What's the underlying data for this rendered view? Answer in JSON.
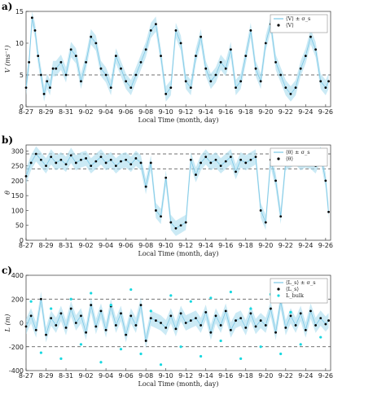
{
  "chart_data": [
    {
      "type": "line",
      "panel_label": "a)",
      "title": "",
      "xlabel": "Local Time (month, day)",
      "ylabel": "V (ms⁻¹)",
      "x_tick_labels": [
        "8-27",
        "8-29",
        "8-31",
        "9-02",
        "9-04",
        "9-06",
        "9-08",
        "9-10",
        "9-12",
        "9-14",
        "9-16",
        "9-18",
        "9-20",
        "9-22",
        "9-24",
        "9-26"
      ],
      "xlim": [
        0,
        30.5
      ],
      "ylim": [
        0,
        15
      ],
      "y_ticks": [
        0,
        5,
        10,
        15
      ],
      "reference_lines": [
        5
      ],
      "legend": [
        "⟨V⟩ ± σ_s",
        "⟨V⟩"
      ],
      "legend_position": "top-right",
      "band_color": "#a9dcef",
      "point_color": "#000000",
      "series": [
        {
          "name": "⟨V⟩",
          "x": [
            0,
            0.3,
            0.6,
            0.9,
            1.2,
            1.5,
            1.8,
            2.1,
            2.4,
            2.7,
            3.0,
            3.5,
            4.0,
            4.5,
            5.0,
            5.5,
            6.0,
            6.5,
            7.0,
            7.5,
            8.0,
            8.5,
            9.0,
            9.5,
            10.0,
            10.5,
            11.0,
            11.5,
            12.0,
            12.5,
            13.0,
            13.5,
            14.0,
            14.5,
            15.0,
            15.5,
            16.0,
            16.5,
            17.0,
            17.5,
            18.0,
            18.5,
            19.0,
            19.5,
            20.0,
            20.5,
            21.0,
            21.5,
            22.0,
            22.5,
            23.0,
            23.5,
            24.0,
            24.5,
            25.0,
            25.5,
            26.0,
            26.5,
            27.0,
            27.5,
            28.0,
            28.5,
            29.0,
            29.5,
            30.0,
            30.3
          ],
          "y": [
            3,
            7,
            14,
            12,
            8,
            5,
            2,
            4,
            3,
            6,
            6,
            7,
            5,
            9,
            8,
            4,
            7,
            11,
            10,
            6,
            5,
            3,
            8,
            6,
            4,
            3,
            5,
            7,
            9,
            12,
            13,
            8,
            2,
            3,
            12,
            10,
            4,
            3,
            8,
            11,
            6,
            4,
            5,
            7,
            6,
            9,
            3,
            4,
            8,
            12,
            6,
            4,
            10,
            13,
            7,
            5,
            3,
            2,
            3,
            6,
            8,
            11,
            9,
            4,
            3,
            4
          ]
        }
      ]
    },
    {
      "type": "line",
      "panel_label": "b)",
      "title": "",
      "xlabel": "Local Time (month, day)",
      "ylabel": "θ",
      "x_tick_labels": [
        "8-27",
        "8-29",
        "8-31",
        "9-02",
        "9-04",
        "9-06",
        "9-08",
        "9-10",
        "9-12",
        "9-14",
        "9-16",
        "9-18",
        "9-20",
        "9-22",
        "9-24",
        "9-26"
      ],
      "xlim": [
        0,
        30.5
      ],
      "ylim": [
        0,
        320
      ],
      "y_ticks": [
        0,
        50,
        100,
        150,
        200,
        250,
        300
      ],
      "reference_lines": [
        240,
        290
      ],
      "legend": [
        "⟨θ⟩ ± σ_s",
        "⟨θ⟩"
      ],
      "legend_position": "top-right",
      "band_color": "#a9dcef",
      "point_color": "#000000",
      "series": [
        {
          "name": "⟨θ⟩",
          "x": [
            0,
            0.5,
            1.0,
            1.5,
            2.0,
            2.5,
            3.0,
            3.5,
            4.0,
            4.5,
            5.0,
            5.5,
            6.0,
            6.5,
            7.0,
            7.5,
            8.0,
            8.5,
            9.0,
            9.5,
            10.0,
            10.5,
            11.0,
            11.5,
            12.0,
            12.5,
            13.0,
            13.5,
            14.0,
            14.5,
            15.0,
            15.5,
            16.0,
            16.5,
            17.0,
            17.5,
            18.0,
            18.5,
            19.0,
            19.5,
            20.0,
            20.5,
            21.0,
            21.5,
            22.0,
            22.5,
            23.0,
            23.5,
            24.0,
            24.5,
            25.0,
            25.5,
            26.0,
            26.5,
            27.0,
            27.5,
            28.0,
            28.5,
            29.0,
            29.5,
            30.0,
            30.3
          ],
          "y": [
            215,
            260,
            290,
            270,
            250,
            280,
            260,
            270,
            255,
            285,
            260,
            270,
            275,
            250,
            265,
            280,
            260,
            270,
            250,
            265,
            270,
            255,
            275,
            260,
            180,
            260,
            100,
            80,
            210,
            60,
            40,
            50,
            60,
            270,
            220,
            260,
            280,
            260,
            270,
            250,
            265,
            280,
            230,
            270,
            260,
            270,
            280,
            100,
            60,
            270,
            200,
            80,
            260,
            270,
            280,
            260,
            270,
            265,
            250,
            290,
            200,
            95
          ]
        }
      ]
    },
    {
      "type": "line",
      "panel_label": "c)",
      "title": "",
      "xlabel": "Local Time (month, day)",
      "ylabel": "L (m)",
      "x_tick_labels": [
        "8-27",
        "8-29",
        "8-31",
        "9-02",
        "9-04",
        "9-06",
        "9-08",
        "9-10",
        "9-12",
        "9-14",
        "9-16",
        "9-18",
        "9-20",
        "9-22",
        "9-24",
        "9-26"
      ],
      "xlim": [
        0,
        30.5
      ],
      "ylim": [
        -400,
        400
      ],
      "y_ticks": [
        -400,
        -200,
        0,
        200,
        400
      ],
      "reference_lines": [
        -200,
        200
      ],
      "legend": [
        "⟨L_s⟩ ± σ_s",
        "⟨L_s⟩",
        "L_bulk"
      ],
      "legend_position": "top-right",
      "band_color": "#a9dcef",
      "point_color": "#000000",
      "bulk_color": "#18d8e0",
      "series": [
        {
          "name": "⟨L_s⟩",
          "x": [
            0,
            0.5,
            1.0,
            1.5,
            2.0,
            2.5,
            3.0,
            3.5,
            4.0,
            4.5,
            5.0,
            5.5,
            6.0,
            6.5,
            7.0,
            7.5,
            8.0,
            8.5,
            9.0,
            9.5,
            10.0,
            10.5,
            11.0,
            11.5,
            12.0,
            12.5,
            13.0,
            13.5,
            14.0,
            14.5,
            15.0,
            15.5,
            16.0,
            16.5,
            17.0,
            17.5,
            18.0,
            18.5,
            19.0,
            19.5,
            20.0,
            20.5,
            21.0,
            21.5,
            22.0,
            22.5,
            23.0,
            23.5,
            24.0,
            24.5,
            25.0,
            25.5,
            26.0,
            26.5,
            27.0,
            27.5,
            28.0,
            28.5,
            29.0,
            29.5,
            30.0,
            30.3
          ],
          "y": [
            -30,
            60,
            -60,
            200,
            -100,
            40,
            -20,
            80,
            -40,
            120,
            0,
            60,
            -80,
            150,
            -30,
            100,
            -60,
            140,
            -20,
            80,
            -100,
            60,
            -20,
            150,
            -150,
            40,
            20,
            0,
            -40,
            60,
            -50,
            80,
            0,
            20,
            40,
            -20,
            90,
            -80,
            60,
            -20,
            100,
            -60,
            20,
            40,
            -40,
            80,
            -30,
            20,
            -20,
            120,
            -80,
            180,
            -40,
            60,
            -20,
            80,
            -60,
            100,
            -20,
            40,
            -10,
            20
          ]
        },
        {
          "name": "L_bulk",
          "x": [
            0.5,
            1.5,
            2.5,
            3.5,
            4.5,
            5.5,
            6.5,
            7.5,
            8.5,
            9.5,
            10.5,
            11.5,
            12.5,
            13.5,
            14.5,
            15.5,
            16.5,
            17.5,
            18.5,
            19.5,
            20.5,
            21.5,
            22.5,
            23.5,
            24.5,
            25.5,
            26.5,
            27.5,
            28.5,
            29.5
          ],
          "y": [
            180,
            -250,
            120,
            -300,
            200,
            -180,
            250,
            -330,
            150,
            -220,
            280,
            -260,
            100,
            -350,
            230,
            -200,
            180,
            -280,
            210,
            -150,
            260,
            -300,
            120,
            -200,
            240,
            -260,
            90,
            -180,
            200,
            -120
          ]
        }
      ]
    }
  ]
}
